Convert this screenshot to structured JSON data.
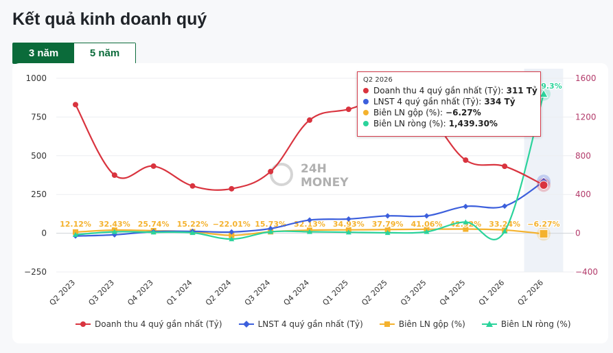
{
  "page": {
    "title": "Kết quả kinh doanh quý",
    "tabs": [
      {
        "label": "3 năm",
        "active": true
      },
      {
        "label": "5 năm",
        "active": false
      }
    ]
  },
  "watermark": {
    "line1": "24H",
    "line2": "MONEY"
  },
  "chart_data": {
    "type": "line",
    "categories": [
      "Q2 2023",
      "Q3 2023",
      "Q4 2023",
      "Q1 2024",
      "Q2 2024",
      "Q3 2024",
      "Q4 2024",
      "Q1 2025",
      "Q2 2025",
      "Q3 2025",
      "Q4 2025",
      "Q1 2026",
      "Q2 2026"
    ],
    "left_axis": {
      "ticks": [
        "1000",
        "750",
        "500",
        "250",
        "0",
        "−250"
      ],
      "range": [
        -250,
        1000
      ]
    },
    "right_axis": {
      "ticks": [
        "1600",
        "1200",
        "800",
        "400",
        "0",
        "−400"
      ],
      "range": [
        -400,
        1600
      ]
    },
    "series": [
      {
        "name": "Doanh thu 4 quý gần nhất (Tỷ)",
        "axis": "left",
        "color": "#d9343f",
        "marker": "circle",
        "values": [
          830,
          375,
          433,
          305,
          287,
          398,
          730,
          800,
          865,
          770,
          472,
          432,
          311
        ]
      },
      {
        "name": "LNST 4 quý gần nhất (Tỷ)",
        "axis": "left",
        "color": "#3c5fdc",
        "marker": "diamond",
        "values": [
          -18,
          -10,
          10,
          12,
          8,
          30,
          85,
          92,
          112,
          112,
          173,
          175,
          334
        ]
      },
      {
        "name": "Biên LN gộp (%)",
        "axis": "right",
        "color": "#f4b22e",
        "marker": "square",
        "values": [
          12.12,
          32.43,
          25.74,
          15.22,
          -22.01,
          15.73,
          32.13,
          34.93,
          37.79,
          41.06,
          42.92,
          33.24,
          -6.27
        ],
        "labels": [
          "12.12%",
          "32.43%",
          "25.74%",
          "15.22%",
          "−22.01%",
          "15.73%",
          "32.13%",
          "34.93%",
          "37.79%",
          "41.06%",
          "42.92%",
          "33.24%",
          "−6.27%"
        ]
      },
      {
        "name": "Biên LN ròng (%)",
        "axis": "right",
        "color": "#2bd39b",
        "marker": "triangle",
        "values": [
          -15,
          15,
          10,
          5,
          -60,
          15,
          15,
          10,
          5,
          15,
          115,
          20,
          1439.3
        ],
        "end_label": "1439.3%"
      }
    ],
    "highlight_index": 12
  },
  "tooltip": {
    "title": "Q2 2026",
    "rows": [
      {
        "label": "Doanh thu 4 quý gần nhất (Tỷ):",
        "value": "311 Tỷ",
        "color": "#d9343f"
      },
      {
        "label": "LNST 4 quý gần nhất (Tỷ):",
        "value": "334 Tỷ",
        "color": "#3c5fdc"
      },
      {
        "label": "Biên LN gộp (%):",
        "value": "−6.27%",
        "color": "#f4b22e"
      },
      {
        "label": "Biên LN ròng (%):",
        "value": "1,439.30%",
        "color": "#2bd39b"
      }
    ]
  }
}
